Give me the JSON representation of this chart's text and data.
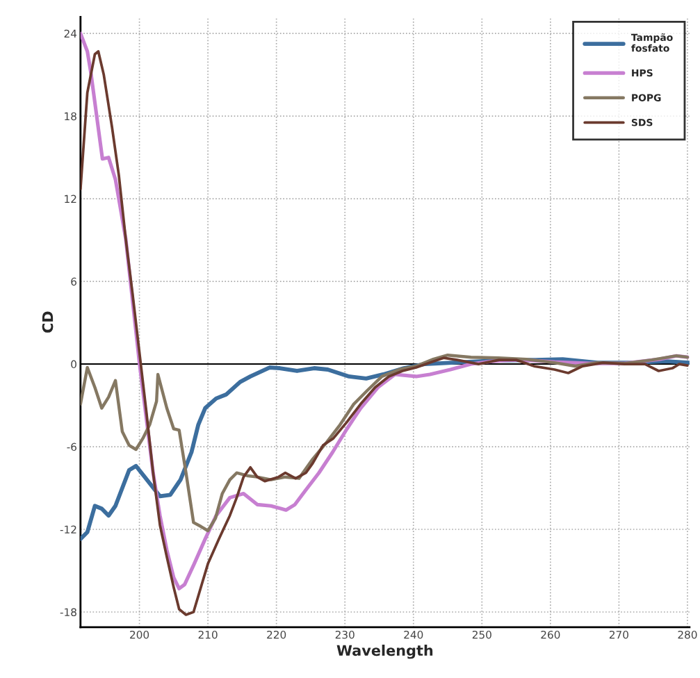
{
  "chart_data": {
    "type": "line",
    "xlabel": "Wavelength",
    "ylabel": "CD",
    "xlim": [
      191.4,
      280.3
    ],
    "ylim": [
      -19.1,
      25.2
    ],
    "xticks": [
      200,
      210,
      220,
      230,
      240,
      250,
      260,
      270,
      280
    ],
    "yticks": [
      -18,
      -12,
      -6,
      0,
      6,
      12,
      18,
      24
    ],
    "grid": true,
    "legend": "top right",
    "marker": "none",
    "line_style": "solid",
    "ref_lines": [
      {
        "axis": "y",
        "value": 0,
        "color": "#000000",
        "line_style": "solid"
      }
    ],
    "series": [
      {
        "name": "Tampão\nfosfato",
        "color": "#3c6e9e",
        "x": [
          191.4,
          192.4,
          193.5,
          194.5,
          195.5,
          196.5,
          197.5,
          198.5,
          199.5,
          203,
          204.5,
          206,
          207.6,
          208.6,
          209.6,
          211.2,
          212.7,
          214.7,
          216.2,
          219,
          220.5,
          223,
          225.5,
          227.5,
          230.6,
          233.1,
          235.6,
          238.6,
          241.6,
          245.6,
          251.7,
          257.8,
          261.8,
          266.9,
          272,
          277,
          280.3
        ],
        "values": [
          -12.7,
          -12.2,
          -10.3,
          -10.5,
          -11,
          -10.3,
          -9,
          -7.7,
          -7.4,
          -9.6,
          -9.5,
          -8.4,
          -6.4,
          -4.4,
          -3.2,
          -2.5,
          -2.2,
          -1.3,
          -0.9,
          -0.25,
          -0.3,
          -0.5,
          -0.3,
          -0.4,
          -0.9,
          -1.05,
          -0.75,
          -0.3,
          0,
          0.1,
          0.25,
          0.3,
          0.35,
          0.1,
          0.1,
          0.2,
          0.1
        ]
      },
      {
        "name": "HPS",
        "color": "#c77fd1",
        "x": [
          191.4,
          192.4,
          192.9,
          194.6,
          195.5,
          196.5,
          198,
          199,
          200,
          201,
          202,
          203,
          204,
          205,
          205.8,
          206.6,
          208,
          209.6,
          211.2,
          213.2,
          215.2,
          217.2,
          219.2,
          220.7,
          221.4,
          222.7,
          224.2,
          226.2,
          228.2,
          230.3,
          232.3,
          234.8,
          237.3,
          240.4,
          242.4,
          245.4,
          248.4,
          251.5,
          254.5,
          257.5,
          260.6,
          265.7,
          270.8,
          275.9,
          278.4,
          280
        ],
        "values": [
          24,
          22.7,
          21.2,
          14.9,
          15,
          13.4,
          9.1,
          4.6,
          0.1,
          -3.9,
          -7.9,
          -11,
          -13.5,
          -15.5,
          -16.3,
          -16,
          -14.5,
          -12.7,
          -11,
          -9.7,
          -9.4,
          -10.2,
          -10.3,
          -10.5,
          -10.6,
          -10.2,
          -9.2,
          -7.9,
          -6.4,
          -4.7,
          -3.2,
          -1.7,
          -0.75,
          -0.9,
          -0.75,
          -0.4,
          0,
          0.2,
          0.3,
          0.25,
          0.15,
          0.05,
          0.05,
          0.35,
          0.6,
          0.5
        ]
      },
      {
        "name": "POPG",
        "color": "#857862",
        "x": [
          191.4,
          192.4,
          193.5,
          194.5,
          195.5,
          196.5,
          197.5,
          198.5,
          199.5,
          200.5,
          201.5,
          202.5,
          202.7,
          204,
          205,
          205.8,
          206.8,
          207.9,
          209,
          210,
          211.1,
          212.1,
          213.2,
          214.2,
          215.7,
          217.2,
          219.2,
          221.3,
          223.3,
          225.3,
          227.3,
          229.3,
          231.3,
          233.3,
          235.4,
          237.9,
          240.4,
          242.9,
          245,
          248.4,
          252.4,
          256.5,
          260.6,
          263.6,
          266.7,
          270.8,
          274.8,
          278.4,
          280
        ],
        "values": [
          -2.9,
          -0.25,
          -1.7,
          -3.2,
          -2.4,
          -1.2,
          -4.9,
          -5.9,
          -6.2,
          -5.4,
          -4.4,
          -2.7,
          -0.75,
          -3.2,
          -4.7,
          -4.8,
          -7.9,
          -11.5,
          -11.8,
          -12.1,
          -11.2,
          -9.4,
          -8.4,
          -7.9,
          -8.1,
          -8.2,
          -8.4,
          -8.2,
          -8.3,
          -6.9,
          -5.7,
          -4.4,
          -2.9,
          -1.9,
          -0.9,
          -0.4,
          -0.15,
          0.35,
          0.65,
          0.5,
          0.45,
          0.35,
          0.1,
          -0.15,
          0.1,
          0.05,
          0.3,
          0.6,
          0.5
        ]
      },
      {
        "name": "SDS",
        "color": "#6b3a2e",
        "x": [
          191.4,
          192.4,
          193.5,
          194,
          194.8,
          196,
          197,
          198,
          199,
          200,
          201,
          202,
          203,
          204,
          205,
          205.8,
          206.8,
          207.9,
          209.1,
          210,
          211.6,
          213.2,
          214.2,
          215.2,
          216.2,
          217.2,
          218.3,
          220.3,
          221.3,
          222.8,
          224.3,
          225.3,
          226.8,
          228.3,
          230.3,
          232.3,
          234.4,
          236.4,
          238.4,
          240.4,
          242.4,
          244.4,
          246.4,
          249.5,
          252.5,
          255,
          257.6,
          260.6,
          262.6,
          264.7,
          267.7,
          270.8,
          273.8,
          275.8,
          277.8,
          278.8,
          280
        ],
        "values": [
          12.7,
          19.7,
          22.5,
          22.7,
          21,
          17.2,
          13.7,
          9.1,
          5.1,
          0.85,
          -3.4,
          -7.9,
          -11.7,
          -14,
          -16.2,
          -17.8,
          -18.2,
          -18,
          -16,
          -14.5,
          -12.7,
          -11,
          -9.7,
          -8.2,
          -7.5,
          -8.2,
          -8.5,
          -8.2,
          -7.9,
          -8.3,
          -7.9,
          -7.2,
          -5.9,
          -5.4,
          -4.2,
          -2.9,
          -1.7,
          -0.9,
          -0.5,
          -0.25,
          0.1,
          0.45,
          0.3,
          0,
          0.3,
          0.3,
          -0.15,
          -0.4,
          -0.65,
          -0.15,
          0.1,
          0,
          0,
          -0.5,
          -0.3,
          0,
          -0.1
        ]
      }
    ]
  }
}
